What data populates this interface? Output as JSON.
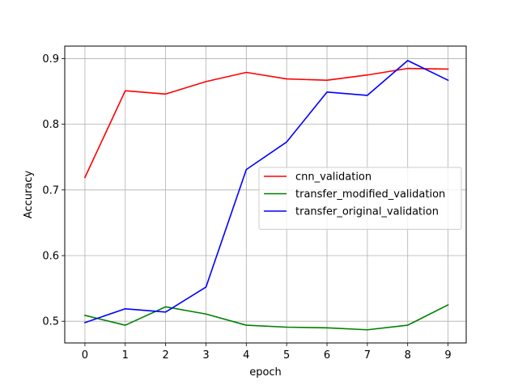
{
  "chart_data": {
    "type": "line",
    "title": "",
    "xlabel": "epoch",
    "ylabel": "Accuracy",
    "x": [
      0,
      1,
      2,
      3,
      4,
      5,
      6,
      7,
      8,
      9
    ],
    "xticks": [
      0,
      1,
      2,
      3,
      4,
      5,
      6,
      7,
      8,
      9
    ],
    "yticks": [
      0.5,
      0.6,
      0.7,
      0.8,
      0.9
    ],
    "xlim": [
      -0.5,
      9.45
    ],
    "ylim": [
      0.467,
      0.919
    ],
    "grid": true,
    "legend_position": "center-right",
    "series": [
      {
        "name": "cnn_validation",
        "color": "#ff0000",
        "values": [
          0.719,
          0.851,
          0.846,
          0.865,
          0.879,
          0.869,
          0.867,
          0.875,
          0.885,
          0.884
        ]
      },
      {
        "name": "transfer_modified_validation",
        "color": "#008000",
        "values": [
          0.509,
          0.494,
          0.522,
          0.511,
          0.494,
          0.491,
          0.49,
          0.487,
          0.494,
          0.525
        ]
      },
      {
        "name": "transfer_original_validation",
        "color": "#0000ff",
        "values": [
          0.498,
          0.519,
          0.514,
          0.552,
          0.731,
          0.773,
          0.849,
          0.844,
          0.897,
          0.867
        ]
      }
    ]
  }
}
